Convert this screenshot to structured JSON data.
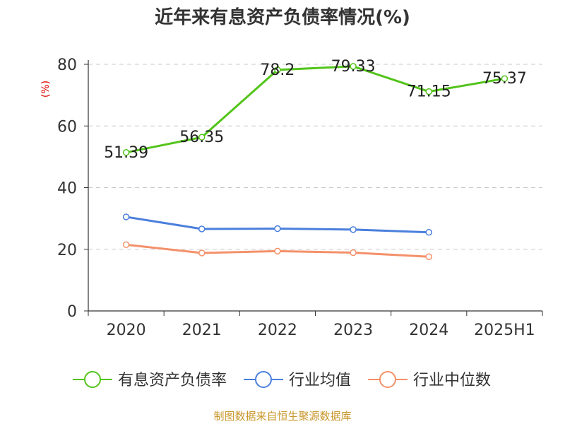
{
  "chart_data": {
    "type": "line",
    "title": "近年来有息资产负债率情况(%)",
    "unit_label": "(%)",
    "xlabel": "",
    "ylabel": "",
    "categories": [
      "2020",
      "2021",
      "2022",
      "2023",
      "2024",
      "2025H1"
    ],
    "ylim": [
      0,
      80
    ],
    "yticks": [
      0,
      20,
      40,
      60,
      80
    ],
    "grid": "horizontal-dashed",
    "legend_position": "bottom",
    "series": [
      {
        "name": "有息资产负债率",
        "color": "#52c41a",
        "values": [
          51.39,
          56.35,
          78.2,
          79.33,
          71.15,
          75.37
        ],
        "data_labels": [
          "51.39",
          "56.35",
          "78.2",
          "79.33",
          "71.15",
          "75.37"
        ]
      },
      {
        "name": "行业均值",
        "color": "#4a7fdc",
        "values": [
          30.5,
          26.6,
          26.7,
          26.4,
          25.5,
          null
        ]
      },
      {
        "name": "行业中位数",
        "color": "#f4916a",
        "values": [
          21.5,
          18.8,
          19.4,
          18.9,
          17.6,
          null
        ]
      }
    ],
    "source": "制图数据来自恒生聚源数据库"
  }
}
